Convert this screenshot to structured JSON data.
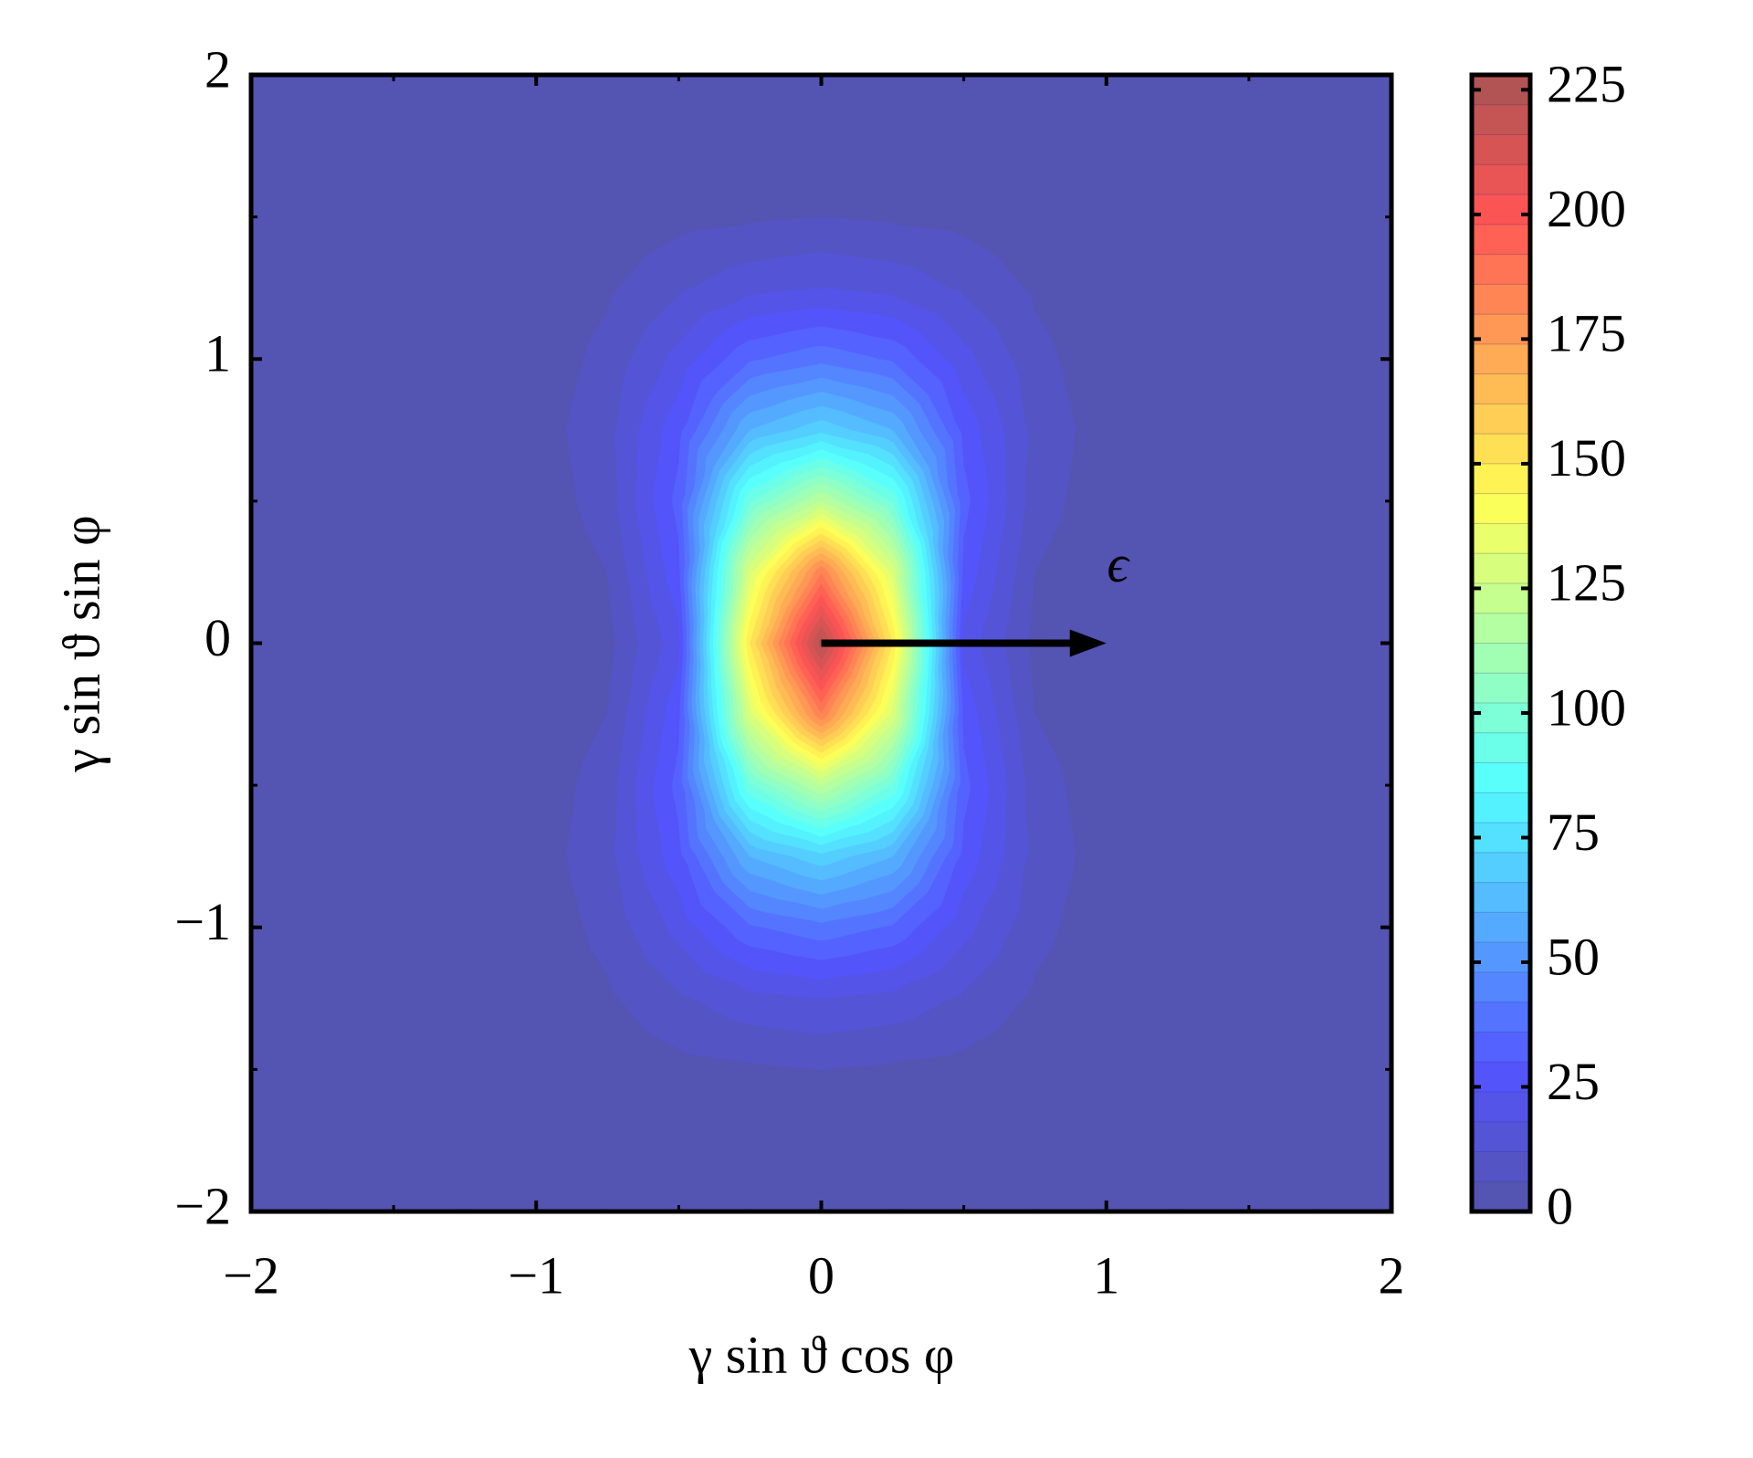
{
  "chart_data": {
    "type": "contour",
    "xlabel": "γ sin ϑ cos φ",
    "ylabel": "γ sin ϑ sin φ",
    "x": [
      -2,
      -1.75,
      -1.5,
      -1.25,
      -1,
      -0.75,
      -0.5,
      -0.25,
      0,
      0.25,
      0.5,
      0.75,
      1,
      1.25,
      1.5,
      1.75,
      2
    ],
    "y": [
      -2,
      -1.75,
      -1.5,
      -1.25,
      -1,
      -0.75,
      -0.5,
      -0.25,
      0,
      0.25,
      0.5,
      0.75,
      1,
      1.25,
      1.5,
      1.75,
      2
    ],
    "z": [
      [
        0,
        0,
        0,
        0,
        0,
        0,
        0,
        0,
        0,
        0,
        0,
        0,
        0,
        0,
        0,
        0,
        0
      ],
      [
        0,
        0,
        0,
        0,
        0,
        0,
        1,
        1,
        1,
        1,
        1,
        0,
        0,
        0,
        0,
        0,
        0
      ],
      [
        0,
        0,
        0,
        0,
        0,
        2,
        4,
        5,
        6,
        5,
        4,
        2,
        0,
        0,
        0,
        0,
        0
      ],
      [
        0,
        0,
        0,
        0,
        1,
        5,
        11,
        16,
        18,
        16,
        11,
        5,
        1,
        0,
        0,
        0,
        0
      ],
      [
        0,
        0,
        0,
        0,
        2,
        8,
        20,
        35,
        40,
        35,
        20,
        8,
        2,
        0,
        0,
        0,
        0
      ],
      [
        0,
        0,
        0,
        0,
        3,
        10,
        28,
        60,
        70,
        60,
        28,
        10,
        3,
        0,
        0,
        0,
        0
      ],
      [
        0,
        0,
        0,
        0,
        2,
        9,
        32,
        95,
        120,
        95,
        32,
        9,
        2,
        0,
        0,
        0,
        0
      ],
      [
        0,
        0,
        0,
        0,
        1,
        6,
        28,
        130,
        185,
        130,
        28,
        6,
        1,
        0,
        0,
        0,
        0
      ],
      [
        0,
        0,
        0,
        0,
        0,
        4,
        22,
        150,
        225,
        150,
        22,
        4,
        0,
        0,
        0,
        0,
        0
      ],
      [
        0,
        0,
        0,
        0,
        1,
        6,
        28,
        130,
        185,
        130,
        28,
        6,
        1,
        0,
        0,
        0,
        0
      ],
      [
        0,
        0,
        0,
        0,
        2,
        9,
        32,
        95,
        120,
        95,
        32,
        9,
        2,
        0,
        0,
        0,
        0
      ],
      [
        0,
        0,
        0,
        0,
        3,
        10,
        28,
        60,
        70,
        60,
        28,
        10,
        3,
        0,
        0,
        0,
        0
      ],
      [
        0,
        0,
        0,
        0,
        2,
        8,
        20,
        35,
        40,
        35,
        20,
        8,
        2,
        0,
        0,
        0,
        0
      ],
      [
        0,
        0,
        0,
        0,
        1,
        5,
        11,
        16,
        18,
        16,
        11,
        5,
        1,
        0,
        0,
        0,
        0
      ],
      [
        0,
        0,
        0,
        0,
        0,
        2,
        4,
        5,
        6,
        5,
        4,
        2,
        0,
        0,
        0,
        0,
        0
      ],
      [
        0,
        0,
        0,
        0,
        0,
        0,
        1,
        1,
        1,
        1,
        1,
        0,
        0,
        0,
        0,
        0,
        0
      ],
      [
        0,
        0,
        0,
        0,
        0,
        0,
        0,
        0,
        0,
        0,
        0,
        0,
        0,
        0,
        0,
        0,
        0
      ]
    ],
    "levels": [
      0,
      6,
      12,
      18,
      24,
      30,
      36,
      42,
      48,
      54,
      60,
      66,
      72,
      78,
      84,
      90,
      96,
      102,
      108,
      114,
      120,
      126,
      132,
      138,
      144,
      150,
      156,
      162,
      168,
      174,
      180,
      186,
      192,
      198,
      204,
      210,
      216,
      222,
      228
    ],
    "colormap": "jet",
    "alpha": 0.67,
    "xlim": [
      -2,
      2
    ],
    "ylim": [
      -2,
      2
    ],
    "xticks": [
      {
        "value": -2,
        "label": "−2"
      },
      {
        "value": -1,
        "label": "−1"
      },
      0,
      1,
      2
    ],
    "yticks": [
      {
        "value": -2,
        "label": "−2"
      },
      {
        "value": -1,
        "label": "−1"
      },
      0,
      1,
      2
    ],
    "minor_ticks": [
      -1.5,
      -0.5,
      0.5,
      1.5
    ],
    "colorbar_ticks": [
      0,
      25,
      50,
      75,
      100,
      125,
      150,
      175,
      200,
      225
    ],
    "annotations": [
      {
        "text": "ϵ",
        "x": 1.04,
        "y": 0.26,
        "arrow_from": [
          0,
          0
        ],
        "arrow_to": [
          1,
          0
        ]
      }
    ]
  }
}
